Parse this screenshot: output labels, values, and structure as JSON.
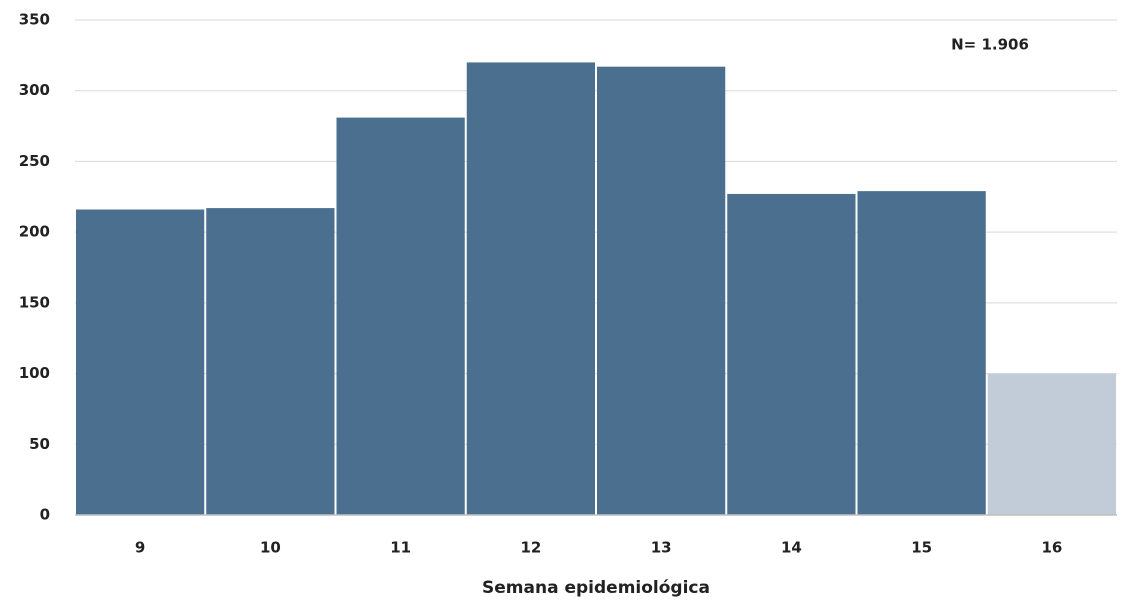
{
  "chart_data": {
    "type": "bar",
    "x_label": "Semana epidemiológica",
    "annotation": "N= 1.906",
    "categories": [
      "9",
      "10",
      "11",
      "12",
      "13",
      "14",
      "15",
      "16"
    ],
    "values": [
      216,
      217,
      281,
      320,
      317,
      227,
      229,
      100
    ],
    "colors": [
      "#4a6f8f",
      "#4a6f8f",
      "#4a6f8f",
      "#4a6f8f",
      "#4a6f8f",
      "#4a6f8f",
      "#4a6f8f",
      "#c2cbd8"
    ],
    "ylim": [
      0,
      350
    ],
    "yticks": [
      0,
      50,
      100,
      150,
      200,
      250,
      300,
      350
    ],
    "grid": true
  }
}
